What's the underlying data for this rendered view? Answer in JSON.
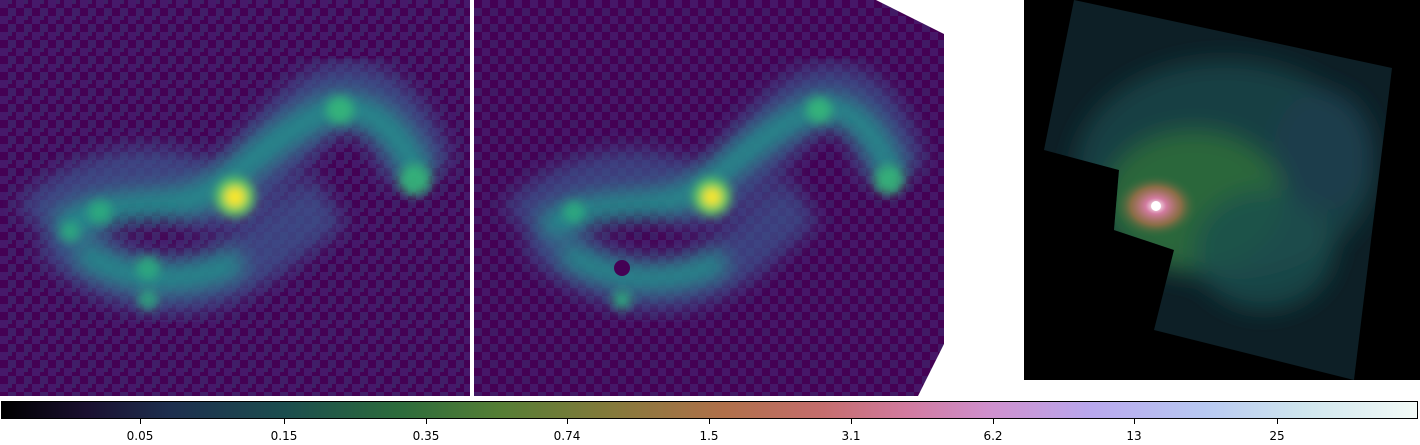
{
  "panels": {
    "left_map": {
      "name": "intensity-map-left",
      "colormap": "viridis"
    },
    "middle_map": {
      "name": "intensity-map-middle",
      "colormap": "viridis"
    },
    "right_image": {
      "name": "galaxy-image-right",
      "colormap": "cubehelix"
    }
  },
  "colorbar": {
    "ticks": [
      "0.05",
      "0.15",
      "0.35",
      "0.74",
      "1.5",
      "3.1",
      "6.2",
      "13",
      "25"
    ],
    "colors": {
      "low": "#000000",
      "mid": "#b0704a",
      "high": "#f3fbf8"
    }
  },
  "viridis": {
    "bg": "#440154",
    "low": "#3b528b",
    "mid": "#21918c",
    "high": "#5ec962",
    "peak": "#fde725"
  }
}
